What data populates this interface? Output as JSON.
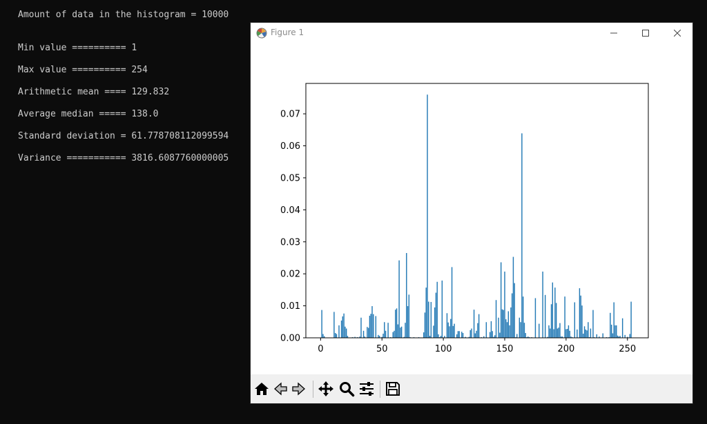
{
  "console": {
    "lines": [
      "Amount of data in the histogram = 10000",
      "Min value ========== 1",
      "Max value ========== 254",
      "Arithmetic mean ==== 129.832",
      "Average median ===== 138.0",
      "Standard deviation = 61.778708112099594",
      "Variance =========== 3816.6087760000005"
    ]
  },
  "window": {
    "title": "Figure 1",
    "icon": "matplotlib-figure-icon",
    "controls": [
      "minimize-icon",
      "maximize-icon",
      "close-icon"
    ]
  },
  "toolbar": {
    "buttons": [
      "home-icon",
      "back-icon",
      "forward-icon",
      "pan-icon",
      "zoom-icon",
      "configure-subplots-icon",
      "save-icon"
    ]
  },
  "colors": {
    "bar": "#1f77b4",
    "console_text": "#cccccc",
    "console_bg": "#0c0c0c"
  },
  "chart_data": {
    "type": "bar",
    "title": "",
    "xlabel": "",
    "ylabel": "",
    "xlim": [
      -12,
      267
    ],
    "ylim": [
      0,
      0.0795
    ],
    "xticks": [
      "0",
      "50",
      "100",
      "150",
      "200",
      "250"
    ],
    "yticks": [
      "0.00",
      "0.01",
      "0.02",
      "0.03",
      "0.04",
      "0.05",
      "0.06",
      "0.07"
    ],
    "grid": false,
    "legend": "none",
    "x": [
      1,
      2,
      3,
      11,
      12,
      13,
      15,
      17,
      18,
      19,
      20,
      21,
      22,
      26,
      28,
      30,
      32,
      33,
      35,
      36,
      38,
      39,
      40,
      41,
      42,
      43,
      45,
      47,
      48,
      50,
      51,
      52,
      53,
      55,
      57,
      59,
      60,
      61,
      62,
      63,
      64,
      65,
      66,
      68,
      69,
      70,
      71,
      72,
      73,
      74,
      76,
      80,
      82,
      84,
      85,
      86,
      87,
      88,
      89,
      90,
      92,
      93,
      94,
      95,
      96,
      97,
      98,
      99,
      101,
      103,
      104,
      105,
      106,
      107,
      108,
      109,
      111,
      112,
      113,
      115,
      116,
      118,
      121,
      122,
      123,
      125,
      126,
      127,
      128,
      129,
      131,
      133,
      135,
      138,
      139,
      140,
      141,
      142,
      143,
      145,
      146,
      147,
      148,
      149,
      150,
      151,
      152,
      153,
      154,
      155,
      156,
      157,
      158,
      159,
      160,
      162,
      163,
      164,
      165,
      166,
      167,
      168,
      169,
      170,
      172,
      175,
      178,
      181,
      183,
      185,
      186,
      187,
      188,
      189,
      190,
      191,
      192,
      193,
      194,
      195,
      196,
      197,
      199,
      200,
      201,
      202,
      203,
      204,
      205,
      206,
      207,
      209,
      211,
      212,
      213,
      214,
      215,
      216,
      217,
      218,
      219,
      220,
      222,
      223,
      225,
      227,
      230,
      233,
      235,
      236,
      237,
      238,
      239,
      240,
      241,
      242,
      243,
      244,
      246,
      248,
      250,
      252,
      253
    ],
    "values": [
      0.0087,
      0.0012,
      0.0005,
      0.0081,
      0.0015,
      0.0012,
      0.0039,
      0.0054,
      0.0067,
      0.0076,
      0.0035,
      0.0029,
      0.0006,
      0.0002,
      0.0003,
      0.0002,
      0.0004,
      0.0063,
      0.0022,
      0.0004,
      0.0034,
      0.0031,
      0.0069,
      0.0075,
      0.0099,
      0.0074,
      0.0068,
      0.0009,
      0.0006,
      0.0003,
      0.0013,
      0.0049,
      0.0022,
      0.0047,
      0.0002,
      0.0018,
      0.0022,
      0.0088,
      0.0092,
      0.0042,
      0.0242,
      0.0032,
      0.0035,
      0.0003,
      0.0047,
      0.0265,
      0.0099,
      0.0135,
      0.0002,
      0.0001,
      0.0002,
      0.0002,
      0.0001,
      0.0017,
      0.0079,
      0.0157,
      0.076,
      0.0113,
      0.0006,
      0.0112,
      0.0038,
      0.0095,
      0.0141,
      0.0175,
      0.0011,
      0.0002,
      0.0006,
      0.0179,
      0.0006,
      0.0077,
      0.0048,
      0.0036,
      0.0059,
      0.0221,
      0.0037,
      0.0044,
      0.0011,
      0.0021,
      0.0021,
      0.0019,
      0.0015,
      0.0003,
      0.0003,
      0.0024,
      0.0029,
      0.0088,
      0.0014,
      0.0022,
      0.0046,
      0.0074,
      0.0002,
      0.0005,
      0.0049,
      0.0018,
      0.0052,
      0.0021,
      0.0003,
      0.0008,
      0.0118,
      0.0063,
      0.0016,
      0.0236,
      0.0089,
      0.0087,
      0.0207,
      0.0058,
      0.0049,
      0.0083,
      0.0039,
      0.0095,
      0.0139,
      0.0253,
      0.0171,
      0.0002,
      0.0012,
      0.0063,
      0.0049,
      0.0639,
      0.0129,
      0.0047,
      0.0015,
      0.0002,
      0.0004,
      0.0002,
      0.0002,
      0.0124,
      0.0044,
      0.0207,
      0.0134,
      0.0003,
      0.0039,
      0.0029,
      0.0105,
      0.0173,
      0.0027,
      0.0157,
      0.0109,
      0.0029,
      0.0032,
      0.0046,
      0.0004,
      0.0004,
      0.0129,
      0.0027,
      0.0028,
      0.0039,
      0.0022,
      0.0004,
      0.0002,
      0.0001,
      0.0111,
      0.0026,
      0.0155,
      0.0132,
      0.0101,
      0.0013,
      0.0036,
      0.0026,
      0.0023,
      0.0049,
      0.0002,
      0.0029,
      0.0087,
      0.0002,
      0.0011,
      0.0004,
      0.0014,
      0.0002,
      0.0002,
      0.0078,
      0.0041,
      0.0014,
      0.0111,
      0.0039,
      0.0039,
      0.0007,
      0.0004,
      0.0006,
      0.0061,
      0.0009,
      0.0003,
      0.0012,
      0.0113
    ]
  }
}
